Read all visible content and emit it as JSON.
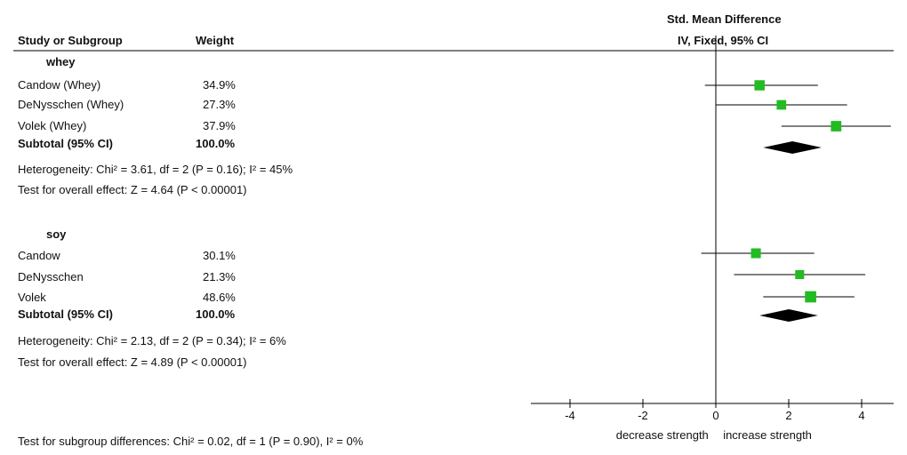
{
  "header": {
    "study_col": "Study or Subgroup",
    "weight_col": "Weight",
    "effect_col_line1": "Std. Mean Difference",
    "effect_col_line2": "IV, Fixed, 95% CI"
  },
  "groups": [
    {
      "name": "whey",
      "studies": [
        {
          "label": "Candow (Whey)",
          "weight": "34.9%"
        },
        {
          "label": "DeNysschen (Whey)",
          "weight": "27.3%"
        },
        {
          "label": "Volek (Whey)",
          "weight": "37.9%"
        }
      ],
      "subtotal_label": "Subtotal (95% CI)",
      "subtotal_weight": "100.0%",
      "heterogeneity": "Heterogeneity: Chi² = 3.61, df = 2 (P = 0.16); I² = 45%",
      "overall": "Test for overall effect: Z = 4.64 (P < 0.00001)"
    },
    {
      "name": "soy",
      "studies": [
        {
          "label": "Candow",
          "weight": "30.1%"
        },
        {
          "label": "DeNysschen",
          "weight": "21.3%"
        },
        {
          "label": "Volek",
          "weight": "48.6%"
        }
      ],
      "subtotal_label": "Subtotal (95% CI)",
      "subtotal_weight": "100.0%",
      "heterogeneity": "Heterogeneity: Chi² = 2.13, df = 2 (P = 0.34); I² = 6%",
      "overall": "Test for overall effect: Z = 4.89 (P < 0.00001)"
    }
  ],
  "footer": {
    "subgroup_test": "Test for subgroup differences: Chi² = 0.02, df = 1 (P = 0.90), I² = 0%"
  },
  "chart_data": {
    "type": "forest",
    "x_label_left": "decrease strength",
    "x_label_right": "increase strength",
    "xlim": [
      -5,
      5
    ],
    "xticks": [
      -4,
      -2,
      0,
      2,
      4
    ],
    "marker_color": "#22bb22",
    "diamond_color": "#000000",
    "groups": [
      {
        "name": "whey",
        "studies": [
          {
            "label": "Candow (Whey)",
            "mean": 1.2,
            "lower": -0.3,
            "upper": 2.8,
            "weight": 34.9
          },
          {
            "label": "DeNysschen (Whey)",
            "mean": 1.8,
            "lower": 0.0,
            "upper": 3.6,
            "weight": 27.3
          },
          {
            "label": "Volek (Whey)",
            "mean": 3.3,
            "lower": 1.8,
            "upper": 4.8,
            "weight": 37.9
          }
        ],
        "subtotal": {
          "mean": 2.1,
          "lower": 1.3,
          "upper": 2.9
        }
      },
      {
        "name": "soy",
        "studies": [
          {
            "label": "Candow",
            "mean": 1.1,
            "lower": -0.4,
            "upper": 2.7,
            "weight": 30.1
          },
          {
            "label": "DeNysschen",
            "mean": 2.3,
            "lower": 0.5,
            "upper": 4.1,
            "weight": 21.3
          },
          {
            "label": "Volek",
            "mean": 2.6,
            "lower": 1.3,
            "upper": 3.8,
            "weight": 48.6
          }
        ],
        "subtotal": {
          "mean": 2.0,
          "lower": 1.2,
          "upper": 2.8
        }
      }
    ]
  }
}
